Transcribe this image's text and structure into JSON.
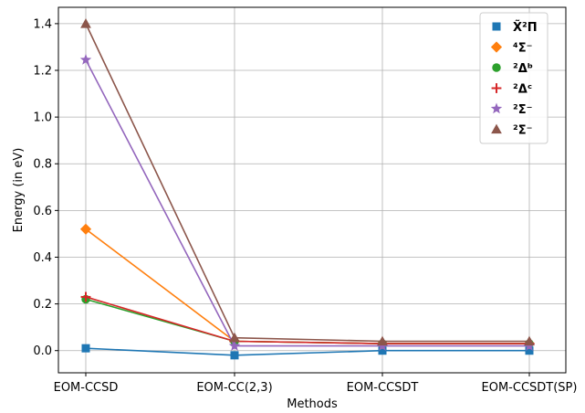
{
  "chart_data": {
    "type": "line",
    "xlabel": "Methods",
    "ylabel": "Energy (in eV)",
    "categories": [
      "EOM-CCSD",
      "EOM-CC(2,3)",
      "EOM-CCSDT",
      "EOM-CCSDT(SP)"
    ],
    "ylim": [
      -0.095,
      1.47
    ],
    "yticks": [
      "0.0",
      "0.2",
      "0.4",
      "0.6",
      "0.8",
      "1.0",
      "1.2",
      "1.4"
    ],
    "grid": true,
    "legend_position": "top-right",
    "series": [
      {
        "name": "X̃²Π",
        "color": "#1f77b4",
        "marker": "square",
        "values": [
          0.01,
          -0.02,
          0.0,
          0.0
        ]
      },
      {
        "name": "⁴Σ⁻",
        "color": "#ff7f0e",
        "marker": "diamond",
        "values": [
          0.52,
          0.04,
          0.03,
          0.03
        ]
      },
      {
        "name": "²Δᵇ",
        "color": "#2ca02c",
        "marker": "circle",
        "values": [
          0.22,
          0.04,
          0.03,
          0.03
        ]
      },
      {
        "name": "²Δᶜ",
        "color": "#d62728",
        "marker": "plus",
        "values": [
          0.23,
          0.04,
          0.03,
          0.03
        ]
      },
      {
        "name": "²Σ⁻",
        "color": "#9467bd",
        "marker": "star",
        "values": [
          1.245,
          0.02,
          0.02,
          0.02
        ]
      },
      {
        "name": "²Σ⁻",
        "color": "#8c564b",
        "marker": "triangle",
        "values": [
          1.4,
          0.055,
          0.04,
          0.04
        ]
      }
    ]
  }
}
